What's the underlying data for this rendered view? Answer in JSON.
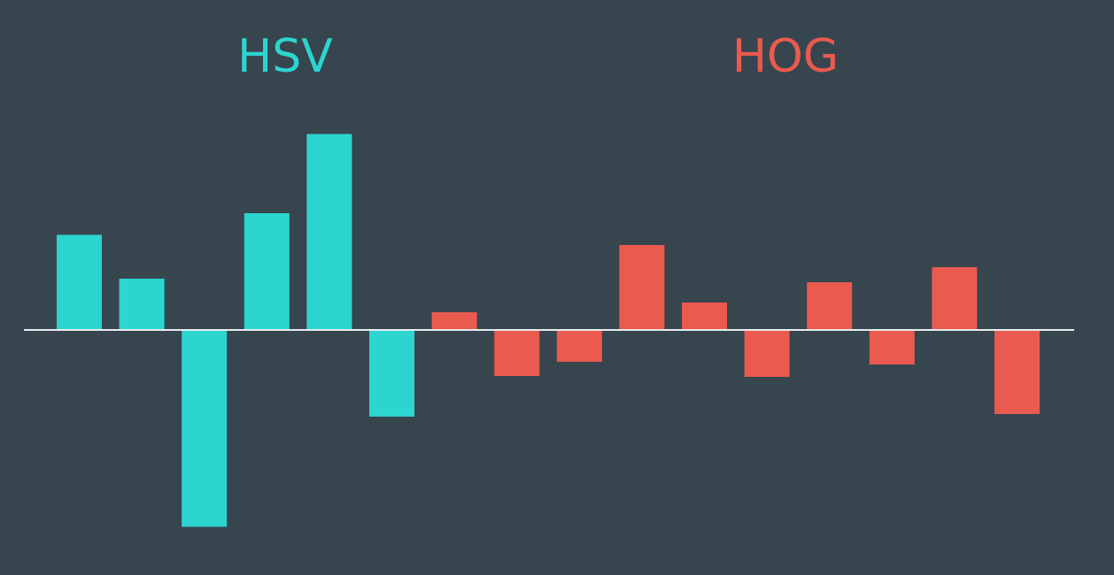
{
  "chart_data": {
    "type": "bar",
    "groups": [
      {
        "name": "HSV",
        "color": "#2cd5cf",
        "values": [
          2.15,
          1.16,
          -4.45,
          2.64,
          4.43,
          -1.96
        ]
      },
      {
        "name": "HOG",
        "color": "#eb5a4f",
        "values": [
          0.4,
          -1.04,
          -0.72,
          1.92,
          0.62,
          -1.06,
          1.08,
          -0.78,
          1.42,
          -1.9
        ]
      }
    ],
    "baseline": 0,
    "ylim": [
      -5.3,
      5.3
    ],
    "axis_color": "#e6ecef",
    "grid": false
  }
}
